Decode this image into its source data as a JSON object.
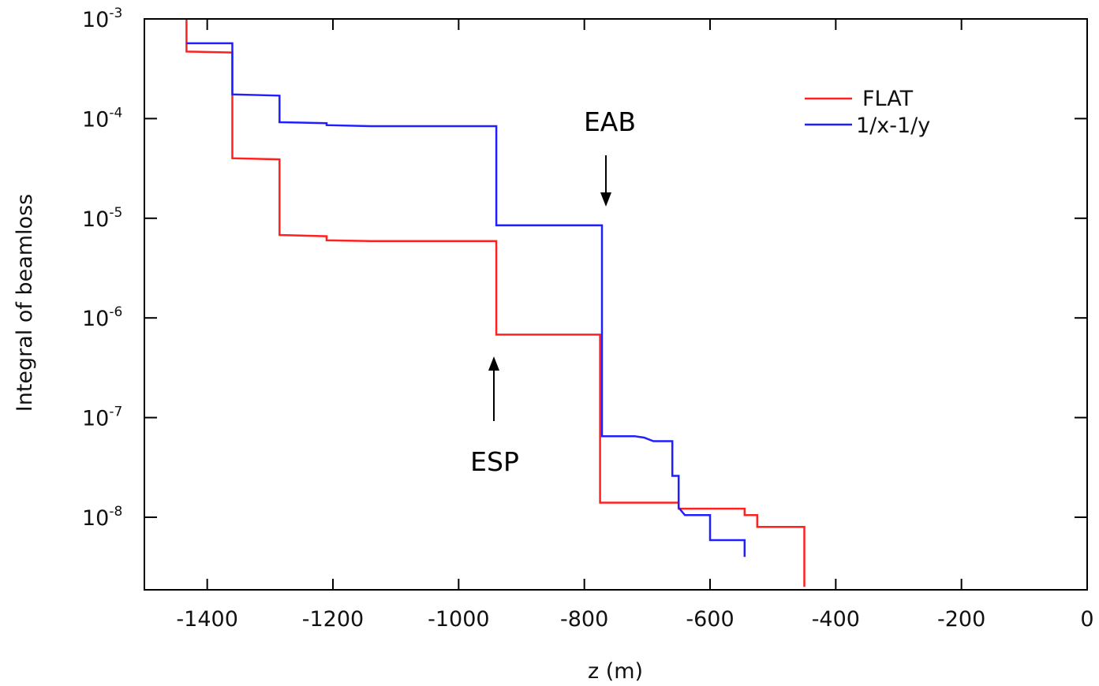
{
  "chart_data": {
    "type": "line",
    "step": true,
    "title": "",
    "xlabel": "z (m)",
    "ylabel": "Integral of beamloss",
    "xlim": [
      -1500,
      0
    ],
    "ylim": [
      2e-09,
      0.001
    ],
    "yscale": "log",
    "x_ticks": [
      -1400,
      -1200,
      -1000,
      -800,
      -600,
      -400,
      -200,
      0
    ],
    "x_tick_labels": [
      "-1400",
      "-1200",
      "-1000",
      "-800",
      "-600",
      "-400",
      "-200",
      "0"
    ],
    "y_ticks": [
      {
        "value": 0.001,
        "base": "10",
        "exp": "-3"
      },
      {
        "value": 0.0001,
        "base": "10",
        "exp": "-4"
      },
      {
        "value": 1e-05,
        "base": "10",
        "exp": "-5"
      },
      {
        "value": 1e-06,
        "base": "10",
        "exp": "-6"
      },
      {
        "value": 1e-07,
        "base": "10",
        "exp": "-7"
      },
      {
        "value": 1e-08,
        "base": "10",
        "exp": "-8"
      }
    ],
    "grid": false,
    "legend": "top-right",
    "series": [
      {
        "name": "FLAT",
        "color": "#ff2020",
        "points": [
          [
            -1433,
            0.001
          ],
          [
            -1433,
            0.00047
          ],
          [
            -1360,
            0.00046
          ],
          [
            -1360,
            4e-05
          ],
          [
            -1285,
            3.9e-05
          ],
          [
            -1285,
            6.8e-06
          ],
          [
            -1210,
            6.6e-06
          ],
          [
            -1210,
            6e-06
          ],
          [
            -1140,
            5.9e-06
          ],
          [
            -940,
            5.9e-06
          ],
          [
            -940,
            6.8e-07
          ],
          [
            -775,
            6.8e-07
          ],
          [
            -775,
            1.4e-08
          ],
          [
            -650,
            1.4e-08
          ],
          [
            -650,
            1.22e-08
          ],
          [
            -545,
            1.22e-08
          ],
          [
            -545,
            1.05e-08
          ],
          [
            -525,
            1.05e-08
          ],
          [
            -525,
            8e-09
          ],
          [
            -450,
            8e-09
          ],
          [
            -450,
            2e-09
          ]
        ]
      },
      {
        "name": "1/x-1/y",
        "color": "#1f1fff",
        "points": [
          [
            -1433,
            0.00057
          ],
          [
            -1360,
            0.00057
          ],
          [
            -1360,
            0.000175
          ],
          [
            -1285,
            0.00017
          ],
          [
            -1285,
            9.2e-05
          ],
          [
            -1210,
            9e-05
          ],
          [
            -1210,
            8.6e-05
          ],
          [
            -1140,
            8.4e-05
          ],
          [
            -940,
            8.4e-05
          ],
          [
            -940,
            8.5e-06
          ],
          [
            -772,
            8.5e-06
          ],
          [
            -772,
            6.5e-08
          ],
          [
            -720,
            6.5e-08
          ],
          [
            -705,
            6.3e-08
          ],
          [
            -690,
            5.8e-08
          ],
          [
            -660,
            5.8e-08
          ],
          [
            -660,
            2.6e-08
          ],
          [
            -650,
            2.6e-08
          ],
          [
            -650,
            1.25e-08
          ],
          [
            -640,
            1.05e-08
          ],
          [
            -600,
            1.05e-08
          ],
          [
            -600,
            5.9e-09
          ],
          [
            -545,
            5.9e-09
          ],
          [
            -545,
            4e-09
          ]
        ]
      }
    ],
    "annotations": [
      {
        "text": "EAB",
        "x": -770,
        "y": 1e-05,
        "arrow": "down"
      },
      {
        "text": "ESP",
        "x": -940,
        "y": 5e-07,
        "arrow": "up"
      }
    ]
  }
}
